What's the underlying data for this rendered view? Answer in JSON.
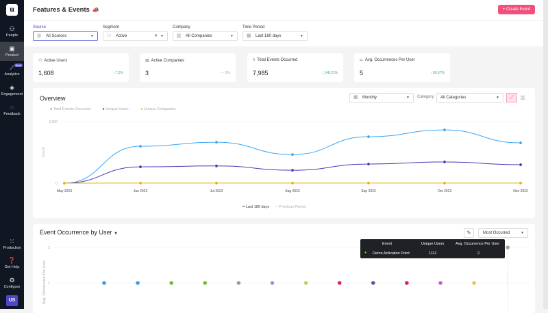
{
  "sidebar": {
    "logo": "u",
    "items": [
      {
        "label": "People",
        "icon": "people-icon"
      },
      {
        "label": "Product",
        "icon": "product-icon",
        "active": true
      },
      {
        "label": "Analytics",
        "icon": "analytics-icon",
        "badge": "Beta"
      },
      {
        "label": "Engagement",
        "icon": "engagement-icon"
      },
      {
        "label": "Feedback",
        "icon": "feedback-icon"
      }
    ],
    "bottom": [
      {
        "label": "Production",
        "icon": "grid-icon"
      },
      {
        "label": "Get Help",
        "icon": "help-icon"
      },
      {
        "label": "Configure",
        "icon": "gear-icon"
      }
    ],
    "avatar": "US"
  },
  "header": {
    "title": "Features & Events",
    "create_label": "Create Event",
    "accent": "#f0507a"
  },
  "filters": {
    "source": {
      "label": "Source",
      "value": "All Sources"
    },
    "segment": {
      "label": "Segment",
      "value": "Active"
    },
    "company": {
      "label": "Company",
      "value": "All Companies"
    },
    "period": {
      "label": "Time Period",
      "value": "Last 180 days"
    }
  },
  "kpis": [
    {
      "label": "Active Users",
      "value": "1,608",
      "delta": "7.2%",
      "dir": "up"
    },
    {
      "label": "Active Companies",
      "value": "3",
      "delta": "0%",
      "dir": "flat"
    },
    {
      "label": "Total Events Occurred",
      "value": "7,985",
      "delta": "148.21%",
      "dir": "up"
    },
    {
      "label": "Avg. Occurrences Per User",
      "value": "5",
      "delta": "66.67%",
      "dir": "up"
    }
  ],
  "overview": {
    "title": "Overview",
    "interval": "Monthly",
    "category_label": "Category",
    "category": "All Categories",
    "period_legend": [
      "Last 180 days",
      "Previous Period"
    ]
  },
  "chart_data": [
    {
      "type": "line",
      "ylabel": "Count",
      "ylim": [
        0,
        2000
      ],
      "yticks": [
        "0",
        "2,000"
      ],
      "categories": [
        "May 2023",
        "Jun 2023",
        "Jul 2023",
        "Aug 2023",
        "Sep 2023",
        "Oct 2023",
        "Nov 2023"
      ],
      "legend": "top-left",
      "series": [
        {
          "name": "Total Events Occurred",
          "color": "#38a6f5",
          "values": [
            0,
            1200,
            1330,
            930,
            1510,
            1730,
            1310
          ]
        },
        {
          "name": "Unique Users",
          "color": "#4338b5",
          "values": [
            0,
            530,
            560,
            420,
            620,
            690,
            600
          ]
        },
        {
          "name": "Unique Companies",
          "color": "#eab308",
          "values": [
            0,
            3,
            3,
            3,
            3,
            3,
            3
          ]
        }
      ]
    },
    {
      "type": "scatter",
      "ylabel": "Avg. Occurrence Per User",
      "ylim": [
        0,
        2
      ],
      "yticks": [
        "1",
        "2"
      ],
      "points": [
        {
          "y": 1,
          "color": "#3b9be8"
        },
        {
          "y": 1,
          "color": "#3b9be8"
        },
        {
          "y": 1,
          "color": "#72b83a"
        },
        {
          "y": 1,
          "color": "#72b83a"
        },
        {
          "y": 1,
          "color": "#9a9a9a"
        },
        {
          "y": 1,
          "color": "#a78bdb"
        },
        {
          "y": 1,
          "color": "#b5d36a"
        },
        {
          "y": 1,
          "color": "#d4245a"
        },
        {
          "y": 1,
          "color": "#6d4a9e"
        },
        {
          "y": 1,
          "color": "#e11d48"
        },
        {
          "y": 1,
          "color": "#c957d4"
        },
        {
          "y": 1,
          "color": "#eac350"
        },
        {
          "y": 2,
          "color": "#a3a39b"
        }
      ]
    }
  ],
  "occurrence": {
    "title": "Event Occurrence by User",
    "sort": "Most Occurred",
    "tooltip": {
      "headers": [
        "Event",
        "Unique Users",
        "Avg. Occurrence Per User"
      ],
      "row": [
        "Demo Activation Point",
        "1112",
        "2"
      ],
      "dot_color": "#84cc16"
    }
  }
}
